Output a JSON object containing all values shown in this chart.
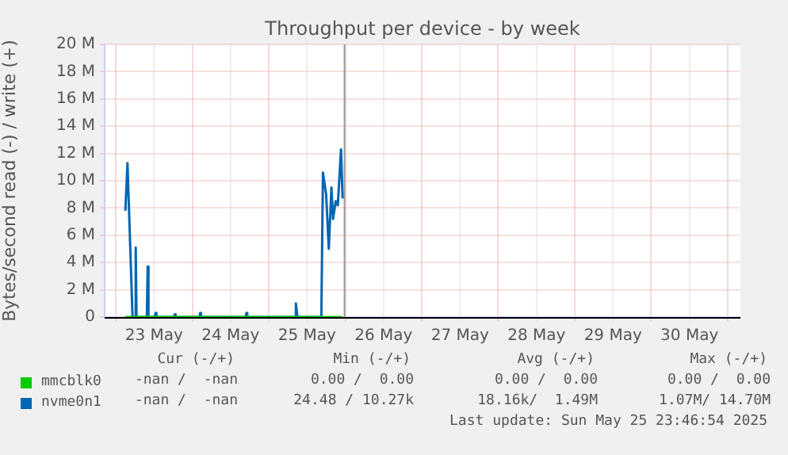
{
  "chart_data": {
    "type": "line",
    "title": "Throughput per device - by week",
    "ylabel": "Bytes/second read (-) / write (+)",
    "xlim": [
      "2025-05-22T20:30",
      "2025-05-31T04:00"
    ],
    "xticks": [
      {
        "value": "2025-05-23T00:00",
        "label": null
      },
      {
        "value": "2025-05-23T12:00",
        "label": "23 May"
      },
      {
        "value": "2025-05-24T00:00",
        "label": null
      },
      {
        "value": "2025-05-24T12:00",
        "label": "24 May"
      },
      {
        "value": "2025-05-25T00:00",
        "label": null
      },
      {
        "value": "2025-05-25T12:00",
        "label": "25 May"
      },
      {
        "value": "2025-05-26T00:00",
        "label": null
      },
      {
        "value": "2025-05-26T12:00",
        "label": "26 May"
      },
      {
        "value": "2025-05-27T00:00",
        "label": null
      },
      {
        "value": "2025-05-27T12:00",
        "label": "27 May"
      },
      {
        "value": "2025-05-28T00:00",
        "label": null
      },
      {
        "value": "2025-05-28T12:00",
        "label": "28 May"
      },
      {
        "value": "2025-05-29T00:00",
        "label": null
      },
      {
        "value": "2025-05-29T12:00",
        "label": "29 May"
      },
      {
        "value": "2025-05-30T00:00",
        "label": null
      },
      {
        "value": "2025-05-30T12:00",
        "label": "30 May"
      },
      {
        "value": "2025-05-31T00:00",
        "label": null
      }
    ],
    "ylim": [
      0,
      20000000
    ],
    "yticks": [
      0,
      {
        "value": 2000000,
        "label": "2 M"
      },
      {
        "value": 4000000,
        "label": "4 M"
      },
      {
        "value": 6000000,
        "label": "6 M"
      },
      {
        "value": 8000000,
        "label": "8 M"
      },
      {
        "value": 10000000,
        "label": "10 M"
      },
      {
        "value": 12000000,
        "label": "12 M"
      },
      {
        "value": 14000000,
        "label": "14 M"
      },
      {
        "value": 16000000,
        "label": "16 M"
      },
      {
        "value": 18000000,
        "label": "18 M"
      },
      {
        "value": 20000000,
        "label": "20 M"
      }
    ],
    "grid": true,
    "legend": "bottom",
    "marker": "none",
    "line_style": "solid",
    "ref_lines": [
      {
        "axis": "x",
        "value": "2025-05-25T23:46",
        "color": "#999999"
      }
    ],
    "series": [
      {
        "name": "mmcblk0",
        "color": "#00cc00",
        "x": [
          "2025-05-23T03:00",
          "2025-05-25T23:00"
        ],
        "values": [
          0,
          0
        ]
      },
      {
        "name": "nvme0n1",
        "color": "#0066b3",
        "x": [
          "2025-05-23T03:00",
          "2025-05-23T03:40",
          "2025-05-23T05:15",
          "2025-05-23T06:00",
          "2025-05-23T06:15",
          "2025-05-23T06:30",
          "2025-05-23T09:45",
          "2025-05-23T10:00",
          "2025-05-23T10:15",
          "2025-05-23T12:15",
          "2025-05-23T12:30",
          "2025-05-23T12:45",
          "2025-05-23T18:15",
          "2025-05-23T18:30",
          "2025-05-23T18:45",
          "2025-05-24T02:15",
          "2025-05-24T02:30",
          "2025-05-24T02:45",
          "2025-05-24T16:45",
          "2025-05-24T17:00",
          "2025-05-24T17:15",
          "2025-05-25T08:15",
          "2025-05-25T08:30",
          "2025-05-25T09:00",
          "2025-05-25T16:30",
          "2025-05-25T17:00",
          "2025-05-25T18:00",
          "2025-05-25T18:50",
          "2025-05-25T19:40",
          "2025-05-25T20:10",
          "2025-05-25T21:00",
          "2025-05-25T21:40",
          "2025-05-25T22:40",
          "2025-05-25T23:10"
        ],
        "values": [
          7800000,
          11300000,
          0,
          0,
          5100000,
          0,
          0,
          3700000,
          0,
          0,
          300000,
          0,
          0,
          200000,
          0,
          0,
          300000,
          0,
          0,
          300000,
          0,
          0,
          1000000,
          0,
          0,
          10600000,
          9000000,
          5000000,
          9500000,
          7200000,
          8500000,
          8200000,
          12300000,
          8700000
        ]
      }
    ],
    "annotations": [
      "Cur (-/+)",
      "Min (-/+)",
      "Avg (-/+)",
      "Max (-/+)",
      "-nan /  -nan",
      "0.00 /  0.00",
      "0.00 /  0.00",
      "0.00 /  0.00",
      "-nan /  -nan",
      "24.48 / 10.27k",
      "18.16k/  1.49M",
      "1.07M/ 14.70M",
      "Last update: Sun May 25 23:46:54 2025"
    ]
  }
}
